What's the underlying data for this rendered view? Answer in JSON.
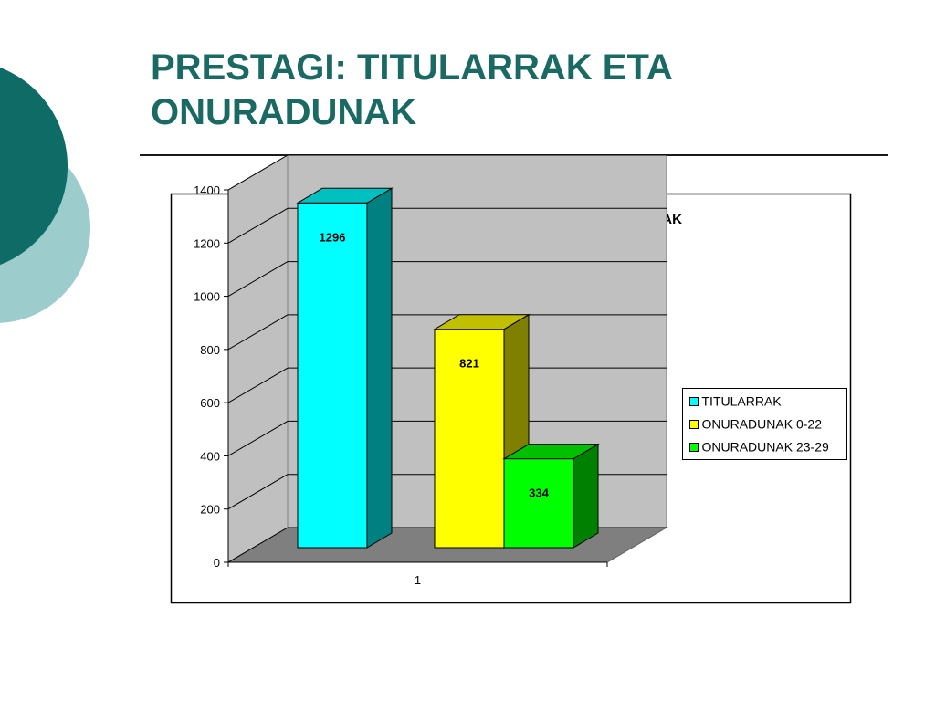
{
  "slide": {
    "title_line1": "PRESTAGI: TITULARRAK ETA",
    "title_line2": "ONURADUNAK"
  },
  "theme": {
    "title_color": "#1a6a63",
    "deco_dark": "#0e6b66",
    "deco_light": "#9ccccb"
  },
  "chart_data": {
    "type": "bar",
    "title": "2016 - PRESTAGI: TITULARRAK ETA ONURADUNAK",
    "categories": [
      "1"
    ],
    "series": [
      {
        "name": "TITULARRAK",
        "values": [
          1296
        ],
        "color": "#00ffff",
        "side": "#008080",
        "top": "#00c0c0"
      },
      {
        "name": "ONURADUNAK 0-22",
        "values": [
          821
        ],
        "color": "#ffff00",
        "side": "#808000",
        "top": "#c0c000"
      },
      {
        "name": "ONURADUNAK 23-29",
        "values": [
          334
        ],
        "color": "#00ff00",
        "side": "#008000",
        "top": "#00c000"
      }
    ],
    "ylim": [
      0,
      1400
    ],
    "yticks": [
      0,
      200,
      400,
      600,
      800,
      1000,
      1200,
      1400
    ],
    "grid": true,
    "data_labels": true,
    "legend_position": "right",
    "style": "3d-column"
  }
}
